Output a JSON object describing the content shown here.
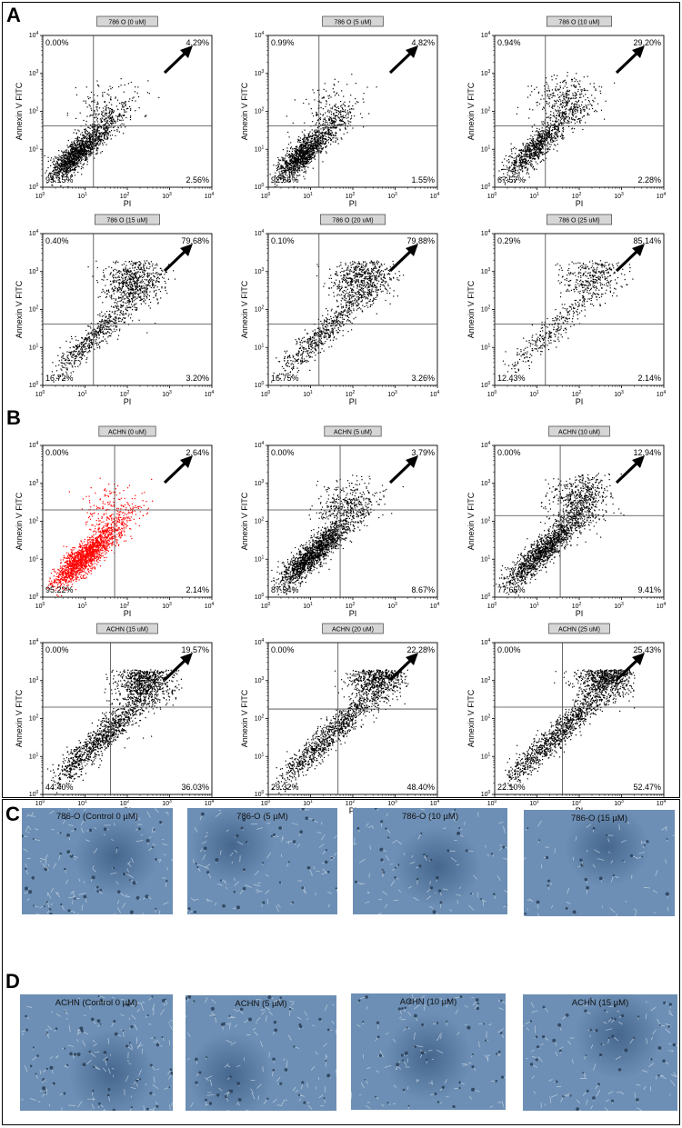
{
  "panels": {
    "A": {
      "letter": "A"
    },
    "B": {
      "letter": "B"
    },
    "C": {
      "letter": "C"
    },
    "D": {
      "letter": "D"
    }
  },
  "colors": {
    "normal_dots": "#000000",
    "control_dots": "#ff0000",
    "photo_bg": "#6d8fb5"
  },
  "chart_data": [
    {
      "type": "scatter",
      "group": "786-O",
      "title": "786 O (0 uM)",
      "xlabel": "PI",
      "ylabel": "Annexin V FITC",
      "xlim": [
        1,
        10000
      ],
      "ylim": [
        1,
        10000
      ],
      "log_axes": true,
      "quadrants": {
        "upper_left": "0.00%",
        "upper_right": "4.29%",
        "lower_left": "93.15%",
        "lower_right": "2.56%"
      }
    },
    {
      "type": "scatter",
      "group": "786-O",
      "title": "786 O (5 uM)",
      "xlabel": "PI",
      "ylabel": "Annexin V FITC",
      "xlim": [
        1,
        10000
      ],
      "ylim": [
        1,
        10000
      ],
      "log_axes": true,
      "quadrants": {
        "upper_left": "0.99%",
        "upper_right": "4.82%",
        "lower_left": "92.65%",
        "lower_right": "1.55%"
      }
    },
    {
      "type": "scatter",
      "group": "786-O",
      "title": "786 O (10 uM)",
      "xlabel": "PI",
      "ylabel": "Annexin V FITC",
      "xlim": [
        1,
        10000
      ],
      "ylim": [
        1,
        10000
      ],
      "log_axes": true,
      "quadrants": {
        "upper_left": "0.94%",
        "upper_right": "29.20%",
        "lower_left": "67.57%",
        "lower_right": "2.28%"
      }
    },
    {
      "type": "scatter",
      "group": "786-O",
      "title": "786 O (15 uM)",
      "xlabel": "PI",
      "ylabel": "Annexin V FITC",
      "xlim": [
        1,
        10000
      ],
      "ylim": [
        1,
        10000
      ],
      "log_axes": true,
      "quadrants": {
        "upper_left": "0.40%",
        "upper_right": "79.68%",
        "lower_left": "16.72%",
        "lower_right": "3.20%"
      }
    },
    {
      "type": "scatter",
      "group": "786-O",
      "title": "786 O (20 uM)",
      "xlabel": "PI",
      "ylabel": "Annexin V FITC",
      "xlim": [
        1,
        10000
      ],
      "ylim": [
        1,
        10000
      ],
      "log_axes": true,
      "quadrants": {
        "upper_left": "0.10%",
        "upper_right": "79.88%",
        "lower_left": "16.75%",
        "lower_right": "3.26%"
      }
    },
    {
      "type": "scatter",
      "group": "786-O",
      "title": "786 O (25 uM)",
      "xlabel": "PI",
      "ylabel": "Annexin V FITC",
      "xlim": [
        1,
        10000
      ],
      "ylim": [
        1,
        10000
      ],
      "log_axes": true,
      "quadrants": {
        "upper_left": "0.29%",
        "upper_right": "85.14%",
        "lower_left": "12.43%",
        "lower_right": "2.14%"
      }
    },
    {
      "type": "scatter",
      "group": "ACHN",
      "title": "ACHN (0 uM)",
      "xlabel": "PI",
      "ylabel": "Annexin V FITC",
      "xlim": [
        1,
        10000
      ],
      "ylim": [
        1,
        10000
      ],
      "log_axes": true,
      "quadrants": {
        "upper_left": "0.00%",
        "upper_right": "2.64%",
        "lower_left": "95.22%",
        "lower_right": "2.14%"
      }
    },
    {
      "type": "scatter",
      "group": "ACHN",
      "title": "ACHN (5 uM)",
      "xlabel": "PI",
      "ylabel": "Annexin V FITC",
      "xlim": [
        1,
        10000
      ],
      "ylim": [
        1,
        10000
      ],
      "log_axes": true,
      "quadrants": {
        "upper_left": "0.00%",
        "upper_right": "3.79%",
        "lower_left": "87.54%",
        "lower_right": "8.67%"
      }
    },
    {
      "type": "scatter",
      "group": "ACHN",
      "title": "ACHN (10 uM)",
      "xlabel": "PI",
      "ylabel": "Annexin V FITC",
      "xlim": [
        1,
        10000
      ],
      "ylim": [
        1,
        10000
      ],
      "log_axes": true,
      "quadrants": {
        "upper_left": "0.00%",
        "upper_right": "12.94%",
        "lower_left": "77.65%",
        "lower_right": "9.41%"
      }
    },
    {
      "type": "scatter",
      "group": "ACHN",
      "title": "ACHN (15 uM)",
      "xlabel": "PI",
      "ylabel": "Annexin V FITC",
      "xlim": [
        1,
        10000
      ],
      "ylim": [
        1,
        10000
      ],
      "log_axes": true,
      "quadrants": {
        "upper_left": "0.00%",
        "upper_right": "19.57%",
        "lower_left": "44.40%",
        "lower_right": "36.03%"
      }
    },
    {
      "type": "scatter",
      "group": "ACHN",
      "title": "ACHN (20 uM)",
      "xlabel": "PI",
      "ylabel": "Annexin V FITC",
      "xlim": [
        1,
        10000
      ],
      "ylim": [
        1,
        10000
      ],
      "log_axes": true,
      "quadrants": {
        "upper_left": "0.00%",
        "upper_right": "22.28%",
        "lower_left": "29.32%",
        "lower_right": "48.40%"
      }
    },
    {
      "type": "scatter",
      "group": "ACHN",
      "title": "ACHN (25 uM)",
      "xlabel": "PI",
      "ylabel": "Annexin V FITC",
      "xlim": [
        1,
        10000
      ],
      "ylim": [
        1,
        10000
      ],
      "log_axes": true,
      "quadrants": {
        "upper_left": "0.00%",
        "upper_right": "25.43%",
        "lower_left": "22.10%",
        "lower_right": "52.47%"
      }
    }
  ],
  "micrographs": {
    "C": [
      "786-O (Control 0 µM)",
      "786-O (5 µM)",
      "786-O (10 µM)",
      "786-O (15 µM)"
    ],
    "D": [
      "ACHN (Control 0 µM)",
      "ACHN (5 µM)",
      "ACHN (10 µM)",
      "ACHN (15 µM)"
    ]
  }
}
